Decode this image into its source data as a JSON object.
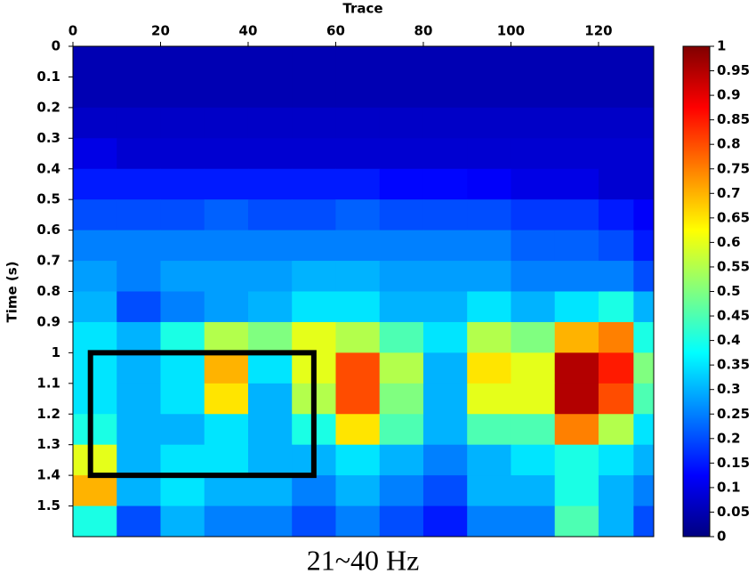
{
  "chart_data": {
    "type": "heatmap",
    "title": "21~40 Hz",
    "x_label": "Trace",
    "y_label": "Time (s)",
    "x": [
      5,
      15,
      25,
      35,
      45,
      55,
      65,
      75,
      85,
      95,
      105,
      115,
      125,
      131
    ],
    "y": [
      0.05,
      0.15,
      0.25,
      0.35,
      0.45,
      0.55,
      0.65,
      0.75,
      0.85,
      0.95,
      1.05,
      1.15,
      1.25,
      1.35,
      1.45,
      1.55
    ],
    "z": [
      [
        0.05,
        0.05,
        0.05,
        0.05,
        0.05,
        0.05,
        0.05,
        0.05,
        0.05,
        0.05,
        0.05,
        0.05,
        0.05,
        0.05
      ],
      [
        0.05,
        0.05,
        0.05,
        0.05,
        0.05,
        0.05,
        0.05,
        0.05,
        0.05,
        0.05,
        0.05,
        0.05,
        0.05,
        0.05
      ],
      [
        0.07,
        0.07,
        0.07,
        0.07,
        0.07,
        0.07,
        0.07,
        0.07,
        0.07,
        0.07,
        0.07,
        0.07,
        0.07,
        0.07
      ],
      [
        0.1,
        0.08,
        0.08,
        0.08,
        0.08,
        0.08,
        0.08,
        0.08,
        0.08,
        0.08,
        0.08,
        0.08,
        0.08,
        0.08
      ],
      [
        0.15,
        0.15,
        0.15,
        0.15,
        0.15,
        0.15,
        0.15,
        0.13,
        0.13,
        0.12,
        0.1,
        0.1,
        0.08,
        0.08
      ],
      [
        0.2,
        0.2,
        0.2,
        0.22,
        0.2,
        0.2,
        0.22,
        0.2,
        0.2,
        0.2,
        0.18,
        0.18,
        0.15,
        0.12
      ],
      [
        0.25,
        0.25,
        0.25,
        0.25,
        0.25,
        0.25,
        0.25,
        0.25,
        0.25,
        0.25,
        0.22,
        0.22,
        0.2,
        0.15
      ],
      [
        0.28,
        0.25,
        0.28,
        0.28,
        0.28,
        0.3,
        0.3,
        0.28,
        0.28,
        0.28,
        0.25,
        0.25,
        0.25,
        0.2
      ],
      [
        0.3,
        0.2,
        0.25,
        0.28,
        0.3,
        0.35,
        0.35,
        0.3,
        0.3,
        0.35,
        0.3,
        0.35,
        0.4,
        0.3
      ],
      [
        0.35,
        0.3,
        0.4,
        0.55,
        0.5,
        0.6,
        0.55,
        0.45,
        0.35,
        0.55,
        0.5,
        0.7,
        0.75,
        0.4
      ],
      [
        0.35,
        0.3,
        0.35,
        0.7,
        0.35,
        0.6,
        0.8,
        0.55,
        0.3,
        0.65,
        0.6,
        0.95,
        0.85,
        0.5
      ],
      [
        0.35,
        0.3,
        0.35,
        0.65,
        0.3,
        0.55,
        0.8,
        0.5,
        0.3,
        0.6,
        0.6,
        0.95,
        0.8,
        0.45
      ],
      [
        0.4,
        0.3,
        0.3,
        0.35,
        0.3,
        0.4,
        0.65,
        0.45,
        0.3,
        0.45,
        0.45,
        0.75,
        0.55,
        0.35
      ],
      [
        0.6,
        0.3,
        0.35,
        0.35,
        0.3,
        0.3,
        0.35,
        0.3,
        0.25,
        0.3,
        0.35,
        0.4,
        0.35,
        0.3
      ],
      [
        0.7,
        0.3,
        0.35,
        0.3,
        0.3,
        0.25,
        0.3,
        0.25,
        0.2,
        0.3,
        0.3,
        0.4,
        0.3,
        0.25
      ],
      [
        0.4,
        0.2,
        0.3,
        0.25,
        0.25,
        0.2,
        0.25,
        0.2,
        0.15,
        0.25,
        0.25,
        0.45,
        0.3,
        0.2
      ]
    ],
    "xlim": [
      0,
      132.6
    ],
    "ylim": [
      0,
      1.6
    ],
    "xticks": [
      0,
      20,
      40,
      60,
      80,
      100,
      120
    ],
    "yticks": [
      0,
      0.1,
      0.2,
      0.3,
      0.4,
      0.5,
      0.6,
      0.7,
      0.8,
      0.9,
      1,
      1.1,
      1.2,
      1.3,
      1.4,
      1.5
    ],
    "colormap": "jet",
    "zlim": [
      0,
      1
    ],
    "zticks": [
      0,
      0.05,
      0.1,
      0.15,
      0.2,
      0.25,
      0.3,
      0.35,
      0.4,
      0.45,
      0.5,
      0.55,
      0.6,
      0.65,
      0.7,
      0.75,
      0.8,
      0.85,
      0.9,
      0.95,
      1
    ],
    "highlight": {
      "x": [
        4,
        55
      ],
      "y": [
        1.0,
        1.4
      ],
      "color": "#000000"
    }
  }
}
